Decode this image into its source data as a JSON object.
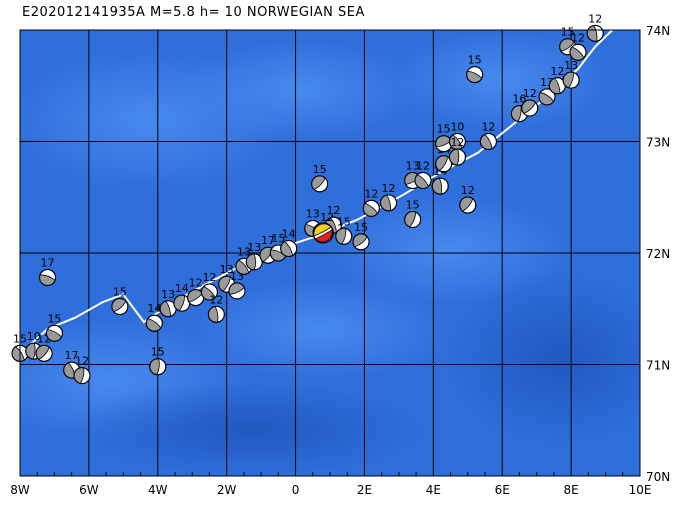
{
  "title": "E202012141935A  M=5.8  h= 10 NORWEGIAN SEA",
  "map": {
    "lon_range": [
      -8,
      10
    ],
    "lat_range": [
      70,
      74
    ],
    "lon_ticks": [
      {
        "value": -8,
        "label": "8W"
      },
      {
        "value": -6,
        "label": "6W"
      },
      {
        "value": -4,
        "label": "4W"
      },
      {
        "value": -2,
        "label": "2W"
      },
      {
        "value": 0,
        "label": "0"
      },
      {
        "value": 2,
        "label": "2E"
      },
      {
        "value": 4,
        "label": "4E"
      },
      {
        "value": 6,
        "label": "6E"
      },
      {
        "value": 8,
        "label": "8E"
      },
      {
        "value": 10,
        "label": "10E"
      }
    ],
    "lat_ticks": [
      {
        "value": 74,
        "label": "74N"
      },
      {
        "value": 73,
        "label": "73N"
      },
      {
        "value": 72,
        "label": "72N"
      },
      {
        "value": 71,
        "label": "71N"
      },
      {
        "value": 70,
        "label": "70N"
      }
    ],
    "colors": {
      "ocean": "#2f6fdc",
      "ocean_light": "#3d82e6",
      "ocean_deep": "#255fc8",
      "ridge": "#ffffff",
      "main_event": "#e02020",
      "main_event_ring": "#f0d020"
    },
    "ridge_path": [
      [
        -7.9,
        71.12
      ],
      [
        -7.2,
        71.32
      ],
      [
        -6.4,
        71.42
      ],
      [
        -5.6,
        71.56
      ],
      [
        -5.0,
        71.63
      ],
      [
        -4.4,
        71.38
      ],
      [
        -3.6,
        71.55
      ],
      [
        -2.6,
        71.72
      ],
      [
        -1.5,
        71.9
      ],
      [
        -0.4,
        72.05
      ],
      [
        0.6,
        72.15
      ],
      [
        1.8,
        72.3
      ],
      [
        3.0,
        72.5
      ],
      [
        4.2,
        72.72
      ],
      [
        5.3,
        72.9
      ],
      [
        6.3,
        73.15
      ],
      [
        7.3,
        73.4
      ],
      [
        8.2,
        73.65
      ],
      [
        8.7,
        73.85
      ],
      [
        9.2,
        74.0
      ]
    ],
    "events": [
      {
        "lon": -7.2,
        "lat": 71.78,
        "label": "17"
      },
      {
        "lon": -8.0,
        "lat": 71.1,
        "label": "15"
      },
      {
        "lon": -7.6,
        "lat": 71.12,
        "label": "10"
      },
      {
        "lon": -7.3,
        "lat": 71.1,
        "label": "12"
      },
      {
        "lon": -7.0,
        "lat": 71.28,
        "label": "15"
      },
      {
        "lon": -6.5,
        "lat": 70.95,
        "label": "17"
      },
      {
        "lon": -6.2,
        "lat": 70.9,
        "label": "12"
      },
      {
        "lon": -5.1,
        "lat": 71.52,
        "label": "15"
      },
      {
        "lon": -4.1,
        "lat": 71.37,
        "label": "14"
      },
      {
        "lon": -3.7,
        "lat": 71.5,
        "label": "13"
      },
      {
        "lon": -3.3,
        "lat": 71.55,
        "label": "14"
      },
      {
        "lon": -2.9,
        "lat": 71.6,
        "label": "12"
      },
      {
        "lon": -2.5,
        "lat": 71.65,
        "label": "12"
      },
      {
        "lon": -2.3,
        "lat": 71.45,
        "label": "12"
      },
      {
        "lon": -2.0,
        "lat": 71.72,
        "label": "13"
      },
      {
        "lon": -1.7,
        "lat": 71.66,
        "label": "13"
      },
      {
        "lon": -1.5,
        "lat": 71.88,
        "label": "13"
      },
      {
        "lon": -1.2,
        "lat": 71.92,
        "label": "13"
      },
      {
        "lon": -0.8,
        "lat": 71.98,
        "label": "17"
      },
      {
        "lon": -0.5,
        "lat": 72.0,
        "label": "15"
      },
      {
        "lon": -0.2,
        "lat": 72.04,
        "label": "14"
      },
      {
        "lon": -4.0,
        "lat": 70.98,
        "label": "15"
      },
      {
        "lon": 0.7,
        "lat": 72.62,
        "label": "15"
      },
      {
        "lon": 0.5,
        "lat": 72.22,
        "label": "13"
      },
      {
        "lon": 1.1,
        "lat": 72.25,
        "label": "12"
      },
      {
        "lon": 1.4,
        "lat": 72.15,
        "label": "15"
      },
      {
        "lon": 1.9,
        "lat": 72.1,
        "label": "15"
      },
      {
        "lon": 2.2,
        "lat": 72.4,
        "label": "12"
      },
      {
        "lon": 2.7,
        "lat": 72.45,
        "label": "12"
      },
      {
        "lon": 3.4,
        "lat": 72.3,
        "label": "15"
      },
      {
        "lon": 3.4,
        "lat": 72.65,
        "label": "13"
      },
      {
        "lon": 3.7,
        "lat": 72.65,
        "label": "12"
      },
      {
        "lon": 4.2,
        "lat": 72.6,
        "label": "14"
      },
      {
        "lon": 4.3,
        "lat": 72.8,
        "label": "14"
      },
      {
        "lon": 4.3,
        "lat": 72.98,
        "label": "15"
      },
      {
        "lon": 4.7,
        "lat": 73.0,
        "label": "10"
      },
      {
        "lon": 4.7,
        "lat": 72.86,
        "label": "12"
      },
      {
        "lon": 5.0,
        "lat": 72.43,
        "label": "12"
      },
      {
        "lon": 5.2,
        "lat": 73.6,
        "label": "15"
      },
      {
        "lon": 5.6,
        "lat": 73.0,
        "label": "12"
      },
      {
        "lon": 6.5,
        "lat": 73.25,
        "label": "16"
      },
      {
        "lon": 6.8,
        "lat": 73.3,
        "label": "12"
      },
      {
        "lon": 7.3,
        "lat": 73.4,
        "label": "13"
      },
      {
        "lon": 7.6,
        "lat": 73.5,
        "label": "12"
      },
      {
        "lon": 8.0,
        "lat": 73.55,
        "label": "13"
      },
      {
        "lon": 7.9,
        "lat": 73.85,
        "label": "15"
      },
      {
        "lon": 8.2,
        "lat": 73.8,
        "label": "12"
      },
      {
        "lon": 8.7,
        "lat": 73.97,
        "label": "12"
      }
    ],
    "main_event": {
      "lon": 0.8,
      "lat": 72.18,
      "label": "12"
    }
  }
}
